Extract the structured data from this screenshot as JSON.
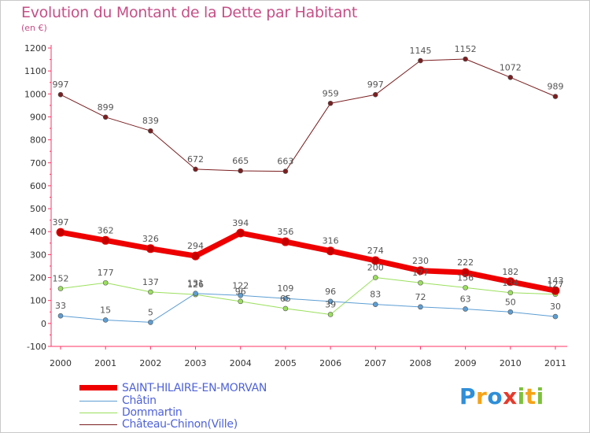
{
  "chart_data": {
    "type": "line",
    "title": "Evolution du Montant de la Dette par Habitant",
    "subtitle": "(en €)",
    "xlabel": "",
    "ylabel": "",
    "x": [
      "2000",
      "2001",
      "2002",
      "2003",
      "2004",
      "2005",
      "2006",
      "2007",
      "2008",
      "2009",
      "2010",
      "2011"
    ],
    "ylim": [
      -100,
      1200
    ],
    "yticks": [
      "-100",
      "0",
      "100",
      "200",
      "300",
      "400",
      "500",
      "600",
      "700",
      "800",
      "900",
      "1000",
      "1100",
      "1200"
    ],
    "grid": false,
    "legend_position": "bottom-left",
    "series": [
      {
        "name": "SAINT-HILAIRE-EN-MORVAN",
        "color": "#ee0000",
        "width": 7,
        "values": [
          397,
          362,
          326,
          294,
          394,
          356,
          316,
          274,
          230,
          222,
          182,
          143
        ],
        "labels": [
          "397",
          "362",
          "326",
          "294",
          "394",
          "356",
          "316",
          "274",
          "230",
          "222",
          "182",
          "143"
        ]
      },
      {
        "name": "Châtin",
        "color": "#5d9ed3",
        "width": 1,
        "values": [
          33,
          15,
          5,
          131,
          122,
          109,
          96,
          83,
          72,
          63,
          50,
          30
        ],
        "labels": [
          "33",
          "15",
          "5",
          "131",
          "122",
          "109",
          "96",
          "83",
          "72",
          "63",
          "50",
          "30"
        ]
      },
      {
        "name": "Dommartin",
        "color": "#9be05d",
        "width": 1,
        "values": [
          152,
          177,
          137,
          126,
          96,
          65,
          39,
          200,
          177,
          156,
          134,
          127
        ],
        "labels": [
          "152",
          "177",
          "137",
          "126",
          "96",
          "65",
          "39",
          "200",
          "177",
          "156",
          "134",
          "127"
        ]
      },
      {
        "name": "Château-Chinon(Ville)",
        "color": "#7b1e20",
        "width": 1,
        "values": [
          997,
          899,
          839,
          672,
          665,
          663,
          959,
          997,
          1145,
          1152,
          1072,
          989
        ],
        "labels": [
          "997",
          "899",
          "839",
          "672",
          "665",
          "663",
          "959",
          "997",
          "1145",
          "1152",
          "1072",
          "989"
        ]
      }
    ]
  },
  "logo": {
    "letters": [
      "P",
      "r",
      "o",
      "x",
      "i",
      "t",
      "i"
    ],
    "colors": [
      "#2f8fd8",
      "#f5a316",
      "#2f8fd8",
      "#e53b2c",
      "#7cc13a",
      "#f5a316",
      "#7cc13a"
    ]
  }
}
